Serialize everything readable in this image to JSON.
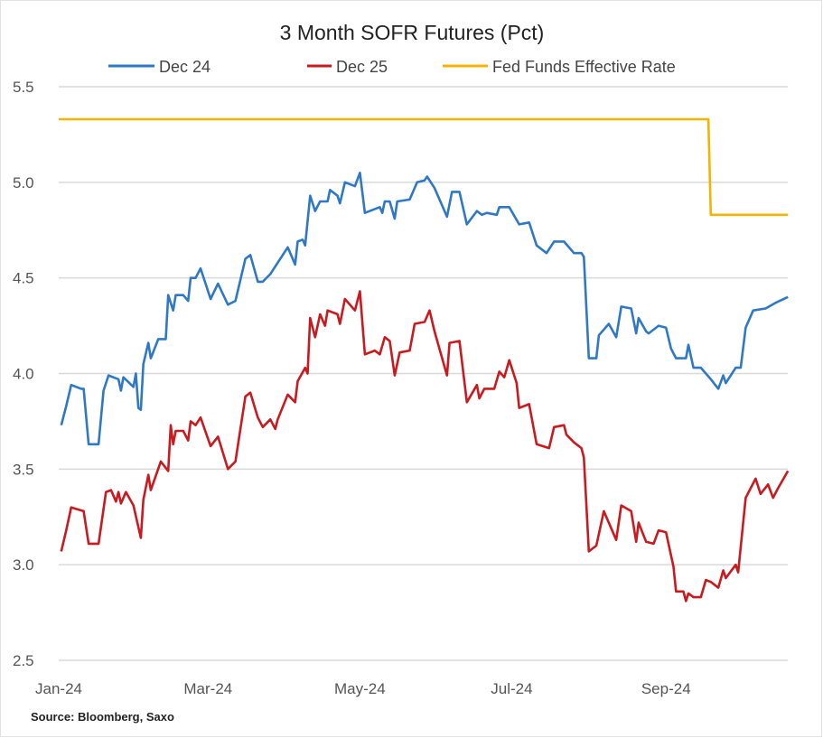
{
  "chart_data": {
    "type": "line",
    "title": "3 Month SOFR Futures (Pct)",
    "source": "Source:  Bloomberg,  Saxo",
    "xlabel": "",
    "ylabel": "",
    "xlim": [
      "2024-01-01",
      "2024-10-21"
    ],
    "ylim": [
      2.5,
      5.5
    ],
    "yticks": [
      "5.5",
      "5.0",
      "4.5",
      "4.0",
      "3.5",
      "3.0",
      "2.5"
    ],
    "xticks": [
      {
        "date": "2024-01-01",
        "label": "Jan-24"
      },
      {
        "date": "2024-03-01",
        "label": "Mar-24"
      },
      {
        "date": "2024-05-01",
        "label": "May-24"
      },
      {
        "date": "2024-07-01",
        "label": "Jul-24"
      },
      {
        "date": "2024-09-01",
        "label": "Sep-24"
      }
    ],
    "grid": "horizontal",
    "legend_placement": "top",
    "series": [
      {
        "name": "Dec 24",
        "color": "#2e78c6",
        "points": [
          [
            "2024-01-02",
            3.73
          ],
          [
            "2024-01-04",
            3.83
          ],
          [
            "2024-01-06",
            3.94
          ],
          [
            "2024-01-10",
            3.92
          ],
          [
            "2024-01-11",
            3.92
          ],
          [
            "2024-01-13",
            3.63
          ],
          [
            "2024-01-17",
            3.63
          ],
          [
            "2024-01-19",
            3.91
          ],
          [
            "2024-01-21",
            3.99
          ],
          [
            "2024-01-25",
            3.97
          ],
          [
            "2024-01-26",
            3.91
          ],
          [
            "2024-01-27",
            3.98
          ],
          [
            "2024-01-31",
            3.93
          ],
          [
            "2024-02-01",
            4.0
          ],
          [
            "2024-02-02",
            3.82
          ],
          [
            "2024-02-03",
            3.81
          ],
          [
            "2024-02-04",
            4.05
          ],
          [
            "2024-02-06",
            4.16
          ],
          [
            "2024-02-07",
            4.08
          ],
          [
            "2024-02-10",
            4.18
          ],
          [
            "2024-02-13",
            4.18
          ],
          [
            "2024-02-14",
            4.41
          ],
          [
            "2024-02-16",
            4.33
          ],
          [
            "2024-02-17",
            4.41
          ],
          [
            "2024-02-20",
            4.41
          ],
          [
            "2024-02-22",
            4.38
          ],
          [
            "2024-02-23",
            4.5
          ],
          [
            "2024-02-25",
            4.5
          ],
          [
            "2024-02-27",
            4.55
          ],
          [
            "2024-03-02",
            4.39
          ],
          [
            "2024-03-05",
            4.47
          ],
          [
            "2024-03-09",
            4.36
          ],
          [
            "2024-03-12",
            4.38
          ],
          [
            "2024-03-16",
            4.6
          ],
          [
            "2024-03-18",
            4.62
          ],
          [
            "2024-03-21",
            4.48
          ],
          [
            "2024-03-23",
            4.48
          ],
          [
            "2024-03-26",
            4.52
          ],
          [
            "2024-03-28",
            4.56
          ],
          [
            "2024-04-02",
            4.66
          ],
          [
            "2024-04-05",
            4.57
          ],
          [
            "2024-04-06",
            4.69
          ],
          [
            "2024-04-08",
            4.7
          ],
          [
            "2024-04-09",
            4.67
          ],
          [
            "2024-04-11",
            4.93
          ],
          [
            "2024-04-13",
            4.85
          ],
          [
            "2024-04-15",
            4.9
          ],
          [
            "2024-04-18",
            4.9
          ],
          [
            "2024-04-19",
            4.96
          ],
          [
            "2024-04-22",
            4.93
          ],
          [
            "2024-04-23",
            4.89
          ],
          [
            "2024-04-25",
            5.0
          ],
          [
            "2024-04-29",
            4.98
          ],
          [
            "2024-05-01",
            5.05
          ],
          [
            "2024-05-03",
            4.84
          ],
          [
            "2024-05-09",
            4.87
          ],
          [
            "2024-05-10",
            4.84
          ],
          [
            "2024-05-11",
            4.9
          ],
          [
            "2024-05-13",
            4.9
          ],
          [
            "2024-05-15",
            4.81
          ],
          [
            "2024-05-16",
            4.9
          ],
          [
            "2024-05-21",
            4.91
          ],
          [
            "2024-05-24",
            5.0
          ],
          [
            "2024-05-27",
            5.01
          ],
          [
            "2024-05-28",
            5.03
          ],
          [
            "2024-05-31",
            4.97
          ],
          [
            "2024-06-05",
            4.82
          ],
          [
            "2024-06-07",
            4.95
          ],
          [
            "2024-06-10",
            4.95
          ],
          [
            "2024-06-13",
            4.78
          ],
          [
            "2024-06-17",
            4.85
          ],
          [
            "2024-06-19",
            4.83
          ],
          [
            "2024-06-21",
            4.84
          ],
          [
            "2024-06-25",
            4.83
          ],
          [
            "2024-06-26",
            4.87
          ],
          [
            "2024-06-30",
            4.87
          ],
          [
            "2024-07-04",
            4.78
          ],
          [
            "2024-07-08",
            4.79
          ],
          [
            "2024-07-11",
            4.67
          ],
          [
            "2024-07-15",
            4.63
          ],
          [
            "2024-07-18",
            4.69
          ],
          [
            "2024-07-22",
            4.69
          ],
          [
            "2024-07-26",
            4.63
          ],
          [
            "2024-07-29",
            4.63
          ],
          [
            "2024-07-30",
            4.61
          ],
          [
            "2024-08-01",
            4.08
          ],
          [
            "2024-08-04",
            4.08
          ],
          [
            "2024-08-05",
            4.2
          ],
          [
            "2024-08-09",
            4.26
          ],
          [
            "2024-08-12",
            4.19
          ],
          [
            "2024-08-14",
            4.35
          ],
          [
            "2024-08-18",
            4.34
          ],
          [
            "2024-08-20",
            4.21
          ],
          [
            "2024-08-21",
            4.29
          ],
          [
            "2024-08-24",
            4.22
          ],
          [
            "2024-08-25",
            4.21
          ],
          [
            "2024-08-29",
            4.25
          ],
          [
            "2024-09-01",
            4.24
          ],
          [
            "2024-09-03",
            4.13
          ],
          [
            "2024-09-05",
            4.08
          ],
          [
            "2024-09-09",
            4.08
          ],
          [
            "2024-09-10",
            4.15
          ],
          [
            "2024-09-12",
            4.03
          ],
          [
            "2024-09-15",
            4.03
          ],
          [
            "2024-09-19",
            3.97
          ],
          [
            "2024-09-22",
            3.92
          ],
          [
            "2024-09-24",
            3.99
          ],
          [
            "2024-09-25",
            3.95
          ],
          [
            "2024-09-29",
            4.03
          ],
          [
            "2024-10-01",
            4.03
          ],
          [
            "2024-10-03",
            4.24
          ],
          [
            "2024-10-06",
            4.33
          ],
          [
            "2024-10-11",
            4.34
          ],
          [
            "2024-10-15",
            4.37
          ],
          [
            "2024-10-20",
            4.4
          ]
        ]
      },
      {
        "name": "Dec 25",
        "color": "#c81a1f",
        "points": [
          [
            "2024-01-02",
            3.07
          ],
          [
            "2024-01-04",
            3.18
          ],
          [
            "2024-01-06",
            3.3
          ],
          [
            "2024-01-11",
            3.28
          ],
          [
            "2024-01-13",
            3.11
          ],
          [
            "2024-01-17",
            3.11
          ],
          [
            "2024-01-20",
            3.38
          ],
          [
            "2024-01-22",
            3.39
          ],
          [
            "2024-01-24",
            3.33
          ],
          [
            "2024-01-25",
            3.38
          ],
          [
            "2024-01-26",
            3.32
          ],
          [
            "2024-01-28",
            3.38
          ],
          [
            "2024-01-31",
            3.31
          ],
          [
            "2024-02-03",
            3.14
          ],
          [
            "2024-02-04",
            3.34
          ],
          [
            "2024-02-06",
            3.47
          ],
          [
            "2024-02-07",
            3.39
          ],
          [
            "2024-02-11",
            3.54
          ],
          [
            "2024-02-14",
            3.49
          ],
          [
            "2024-02-15",
            3.73
          ],
          [
            "2024-02-16",
            3.63
          ],
          [
            "2024-02-17",
            3.7
          ],
          [
            "2024-02-20",
            3.7
          ],
          [
            "2024-02-22",
            3.65
          ],
          [
            "2024-02-23",
            3.75
          ],
          [
            "2024-02-25",
            3.73
          ],
          [
            "2024-02-27",
            3.77
          ],
          [
            "2024-03-02",
            3.62
          ],
          [
            "2024-03-05",
            3.67
          ],
          [
            "2024-03-09",
            3.5
          ],
          [
            "2024-03-12",
            3.54
          ],
          [
            "2024-03-16",
            3.88
          ],
          [
            "2024-03-18",
            3.9
          ],
          [
            "2024-03-21",
            3.77
          ],
          [
            "2024-03-23",
            3.72
          ],
          [
            "2024-03-26",
            3.76
          ],
          [
            "2024-03-28",
            3.71
          ],
          [
            "2024-03-29",
            3.76
          ],
          [
            "2024-04-02",
            3.89
          ],
          [
            "2024-04-05",
            3.85
          ],
          [
            "2024-04-06",
            3.96
          ],
          [
            "2024-04-09",
            4.03
          ],
          [
            "2024-04-10",
            4.0
          ],
          [
            "2024-04-11",
            4.29
          ],
          [
            "2024-04-13",
            4.19
          ],
          [
            "2024-04-15",
            4.31
          ],
          [
            "2024-04-17",
            4.25
          ],
          [
            "2024-04-18",
            4.33
          ],
          [
            "2024-04-22",
            4.31
          ],
          [
            "2024-04-23",
            4.26
          ],
          [
            "2024-04-25",
            4.39
          ],
          [
            "2024-04-29",
            4.33
          ],
          [
            "2024-05-01",
            4.43
          ],
          [
            "2024-05-03",
            4.1
          ],
          [
            "2024-05-07",
            4.12
          ],
          [
            "2024-05-09",
            4.1
          ],
          [
            "2024-05-11",
            4.19
          ],
          [
            "2024-05-13",
            4.17
          ],
          [
            "2024-05-15",
            3.99
          ],
          [
            "2024-05-17",
            4.11
          ],
          [
            "2024-05-21",
            4.12
          ],
          [
            "2024-05-23",
            4.26
          ],
          [
            "2024-05-27",
            4.27
          ],
          [
            "2024-05-29",
            4.33
          ],
          [
            "2024-05-31",
            4.22
          ],
          [
            "2024-06-05",
            3.99
          ],
          [
            "2024-06-06",
            4.16
          ],
          [
            "2024-06-10",
            4.17
          ],
          [
            "2024-06-13",
            3.85
          ],
          [
            "2024-06-17",
            3.94
          ],
          [
            "2024-06-18",
            3.87
          ],
          [
            "2024-06-20",
            3.92
          ],
          [
            "2024-06-24",
            3.92
          ],
          [
            "2024-06-26",
            4.01
          ],
          [
            "2024-06-28",
            3.98
          ],
          [
            "2024-06-30",
            4.07
          ],
          [
            "2024-07-03",
            3.95
          ],
          [
            "2024-07-04",
            3.82
          ],
          [
            "2024-07-08",
            3.84
          ],
          [
            "2024-07-11",
            3.63
          ],
          [
            "2024-07-16",
            3.61
          ],
          [
            "2024-07-18",
            3.72
          ],
          [
            "2024-07-22",
            3.73
          ],
          [
            "2024-07-23",
            3.68
          ],
          [
            "2024-07-26",
            3.64
          ],
          [
            "2024-07-29",
            3.61
          ],
          [
            "2024-07-30",
            3.56
          ],
          [
            "2024-08-01",
            3.07
          ],
          [
            "2024-08-04",
            3.1
          ],
          [
            "2024-08-07",
            3.28
          ],
          [
            "2024-08-12",
            3.13
          ],
          [
            "2024-08-14",
            3.31
          ],
          [
            "2024-08-18",
            3.28
          ],
          [
            "2024-08-20",
            3.12
          ],
          [
            "2024-08-21",
            3.22
          ],
          [
            "2024-08-24",
            3.12
          ],
          [
            "2024-08-27",
            3.11
          ],
          [
            "2024-08-29",
            3.18
          ],
          [
            "2024-09-01",
            3.17
          ],
          [
            "2024-09-04",
            2.99
          ],
          [
            "2024-09-05",
            2.86
          ],
          [
            "2024-09-08",
            2.86
          ],
          [
            "2024-09-09",
            2.81
          ],
          [
            "2024-09-10",
            2.85
          ],
          [
            "2024-09-12",
            2.83
          ],
          [
            "2024-09-15",
            2.83
          ],
          [
            "2024-09-17",
            2.92
          ],
          [
            "2024-09-19",
            2.91
          ],
          [
            "2024-09-22",
            2.88
          ],
          [
            "2024-09-24",
            2.97
          ],
          [
            "2024-09-25",
            2.93
          ],
          [
            "2024-09-29",
            3.0
          ],
          [
            "2024-09-30",
            2.96
          ],
          [
            "2024-10-03",
            3.35
          ],
          [
            "2024-10-07",
            3.45
          ],
          [
            "2024-10-09",
            3.37
          ],
          [
            "2024-10-12",
            3.42
          ],
          [
            "2024-10-14",
            3.35
          ],
          [
            "2024-10-16",
            3.4
          ],
          [
            "2024-10-20",
            3.49
          ]
        ]
      },
      {
        "name": "Fed Funds Effective Rate",
        "color": "#f5b300",
        "points": [
          [
            "2024-01-01",
            5.33
          ],
          [
            "2024-09-18",
            5.33
          ],
          [
            "2024-09-19",
            4.83
          ],
          [
            "2024-10-20",
            4.83
          ]
        ]
      }
    ]
  }
}
